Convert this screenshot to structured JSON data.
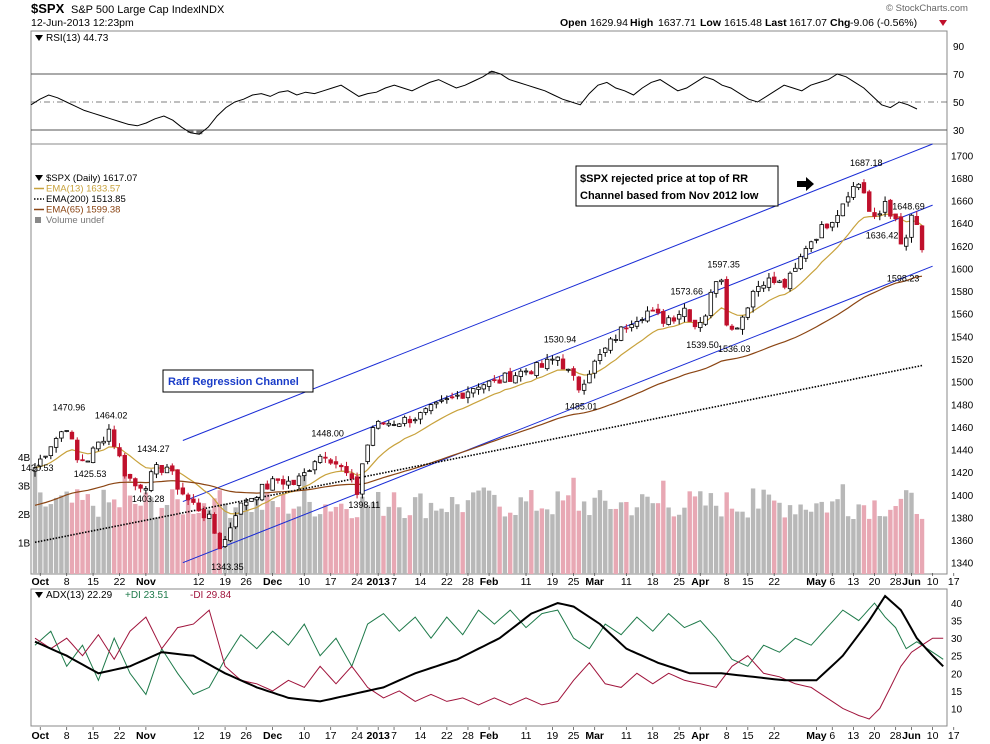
{
  "header": {
    "symbol": "$SPX",
    "name": "S&P 500 Large Cap Index",
    "exchange": "INDX",
    "date": "12-Jun-2013 12:23pm",
    "watermark": "© StockCharts.com",
    "open_label": "Open",
    "open": "1629.94",
    "high_label": "High",
    "high": "1637.71",
    "low_label": "Low",
    "low": "1615.48",
    "last_label": "Last",
    "last": "1617.07",
    "chg_label": "Chg",
    "chg": "-9.06 (-0.56%)"
  },
  "rsi": {
    "label": "RSI(13) 44.73",
    "ticks": [
      90,
      70,
      50,
      30
    ],
    "values": [
      48,
      52,
      55,
      53,
      50,
      47,
      44,
      42,
      40,
      38,
      36,
      34,
      33,
      35,
      38,
      40,
      37,
      32,
      28,
      27,
      32,
      40,
      46,
      50,
      52,
      55,
      56,
      54,
      57,
      58,
      55,
      57,
      56,
      58,
      60,
      62,
      58,
      54,
      56,
      57,
      60,
      62,
      60,
      58,
      61,
      64,
      66,
      63,
      60,
      62,
      65,
      68,
      72,
      70,
      66,
      64,
      62,
      60,
      58,
      55,
      52,
      50,
      48,
      56,
      62,
      64,
      60,
      58,
      55,
      60,
      64,
      66,
      62,
      58,
      60,
      64,
      68,
      66,
      62,
      60,
      56,
      52,
      50,
      54,
      58,
      62,
      60,
      58,
      62,
      64,
      66,
      70,
      68,
      64,
      60,
      54,
      48,
      46,
      50,
      48,
      45
    ]
  },
  "price": {
    "legend": [
      {
        "text": "$SPX (Daily) 1617.07",
        "color": "#000000"
      },
      {
        "text": "EMA(13) 1633.57",
        "color": "#c8a23c"
      },
      {
        "text": "EMA(200) 1513.85",
        "color": "#000000"
      },
      {
        "text": "EMA(65) 1599.38",
        "color": "#8b4513"
      },
      {
        "text": "Volume undef",
        "color": "#777777"
      }
    ],
    "ylim": [
      1330,
      1710
    ],
    "y_ticks": [
      1340,
      1360,
      1380,
      1400,
      1420,
      1440,
      1460,
      1480,
      1500,
      1520,
      1540,
      1560,
      1580,
      1600,
      1620,
      1640,
      1660,
      1680,
      1700
    ],
    "volume_ticks": [
      "4B",
      "3B",
      "2B",
      "1B"
    ],
    "annotation": "$SPX rejected price at top of RR Channel based from Nov 2012 low",
    "channel_label": "Raff Regression Channel",
    "price_labels": [
      {
        "i": 0,
        "price": 1430.53,
        "text": "1430.53"
      },
      {
        "i": 6,
        "price": 1470.96,
        "text": "1470.96"
      },
      {
        "i": 10,
        "price": 1425.53,
        "text": "1425.53"
      },
      {
        "i": 14,
        "price": 1464.02,
        "text": "1464.02"
      },
      {
        "i": 22,
        "price": 1434.27,
        "text": "1434.27"
      },
      {
        "i": 21,
        "price": 1403.28,
        "text": "1403.28"
      },
      {
        "i": 36,
        "price": 1343.35,
        "text": "1343.35"
      },
      {
        "i": 55,
        "price": 1448.0,
        "text": "1448.00"
      },
      {
        "i": 62,
        "price": 1398.11,
        "text": "1398.11"
      },
      {
        "i": 99,
        "price": 1530.94,
        "text": "1530.94"
      },
      {
        "i": 103,
        "price": 1485.01,
        "text": "1485.01"
      },
      {
        "i": 123,
        "price": 1573.66,
        "text": "1573.66"
      },
      {
        "i": 126,
        "price": 1539.5,
        "text": "1539.50"
      },
      {
        "i": 130,
        "price": 1597.35,
        "text": "1597.35"
      },
      {
        "i": 132,
        "price": 1536.03,
        "text": "1536.03"
      },
      {
        "i": 157,
        "price": 1687.18,
        "text": "1687.18"
      },
      {
        "i": 160,
        "price": 1636.42,
        "text": "1636.42"
      },
      {
        "i": 165,
        "price": 1648.69,
        "text": "1648.69"
      },
      {
        "i": 164,
        "price": 1598.23,
        "text": "1598.23"
      }
    ],
    "anchors": [
      [
        0,
        1424
      ],
      [
        3,
        1445
      ],
      [
        6,
        1461
      ],
      [
        8,
        1430
      ],
      [
        10,
        1432
      ],
      [
        14,
        1458
      ],
      [
        17,
        1420
      ],
      [
        19,
        1408
      ],
      [
        21,
        1410
      ],
      [
        23,
        1422
      ],
      [
        25,
        1425
      ],
      [
        27,
        1408
      ],
      [
        29,
        1395
      ],
      [
        31,
        1388
      ],
      [
        33,
        1378
      ],
      [
        35,
        1355
      ],
      [
        36,
        1360
      ],
      [
        38,
        1385
      ],
      [
        40,
        1395
      ],
      [
        43,
        1405
      ],
      [
        46,
        1413
      ],
      [
        49,
        1410
      ],
      [
        51,
        1418
      ],
      [
        53,
        1432
      ],
      [
        55,
        1437
      ],
      [
        57,
        1428
      ],
      [
        59,
        1418
      ],
      [
        61,
        1402
      ],
      [
        62,
        1428
      ],
      [
        64,
        1460
      ],
      [
        66,
        1463
      ],
      [
        70,
        1466
      ],
      [
        73,
        1470
      ],
      [
        77,
        1480
      ],
      [
        81,
        1490
      ],
      [
        84,
        1498
      ],
      [
        87,
        1499
      ],
      [
        90,
        1505
      ],
      [
        93,
        1510
      ],
      [
        96,
        1513
      ],
      [
        99,
        1522
      ],
      [
        101,
        1508
      ],
      [
        103,
        1495
      ],
      [
        105,
        1510
      ],
      [
        107,
        1522
      ],
      [
        110,
        1540
      ],
      [
        113,
        1555
      ],
      [
        116,
        1562
      ],
      [
        119,
        1555
      ],
      [
        121,
        1558
      ],
      [
        123,
        1565
      ],
      [
        125,
        1550
      ],
      [
        127,
        1560
      ],
      [
        129,
        1592
      ],
      [
        130,
        1593
      ],
      [
        131,
        1555
      ],
      [
        132,
        1545
      ],
      [
        134,
        1558
      ],
      [
        136,
        1580
      ],
      [
        138,
        1590
      ],
      [
        140,
        1588
      ],
      [
        142,
        1585
      ],
      [
        144,
        1598
      ],
      [
        146,
        1620
      ],
      [
        148,
        1630
      ],
      [
        150,
        1640
      ],
      [
        152,
        1650
      ],
      [
        154,
        1668
      ],
      [
        156,
        1675
      ],
      [
        157,
        1668
      ],
      [
        158,
        1650
      ],
      [
        159,
        1642
      ],
      [
        160,
        1648
      ],
      [
        161,
        1660
      ],
      [
        162,
        1650
      ],
      [
        163,
        1640
      ],
      [
        164,
        1620
      ],
      [
        165,
        1627
      ],
      [
        166,
        1643
      ],
      [
        167,
        1637
      ],
      [
        168,
        1617
      ]
    ],
    "channel": {
      "start": [
        28,
        1448
      ],
      "end": [
        170,
        1710
      ],
      "lower_offset": -108,
      "middle_offset": -54
    }
  },
  "x_axis": {
    "labels": [
      {
        "i": 1,
        "text": "Oct",
        "bold": true
      },
      {
        "i": 6,
        "text": "8",
        "bold": false
      },
      {
        "i": 11,
        "text": "15",
        "bold": false
      },
      {
        "i": 16,
        "text": "22",
        "bold": false
      },
      {
        "i": 21,
        "text": "Nov",
        "bold": true
      },
      {
        "i": 31,
        "text": "12",
        "bold": false
      },
      {
        "i": 36,
        "text": "19",
        "bold": false
      },
      {
        "i": 40,
        "text": "26",
        "bold": false
      },
      {
        "i": 45,
        "text": "Dec",
        "bold": true
      },
      {
        "i": 51,
        "text": "10",
        "bold": false
      },
      {
        "i": 56,
        "text": "17",
        "bold": false
      },
      {
        "i": 61,
        "text": "24",
        "bold": false
      },
      {
        "i": 65,
        "text": "2013",
        "bold": true
      },
      {
        "i": 68,
        "text": "7",
        "bold": false
      },
      {
        "i": 73,
        "text": "14",
        "bold": false
      },
      {
        "i": 78,
        "text": "22",
        "bold": false
      },
      {
        "i": 82,
        "text": "28",
        "bold": false
      },
      {
        "i": 86,
        "text": "Feb",
        "bold": true
      },
      {
        "i": 93,
        "text": "11",
        "bold": false
      },
      {
        "i": 98,
        "text": "19",
        "bold": false
      },
      {
        "i": 102,
        "text": "25",
        "bold": false
      },
      {
        "i": 106,
        "text": "Mar",
        "bold": true
      },
      {
        "i": 112,
        "text": "11",
        "bold": false
      },
      {
        "i": 117,
        "text": "18",
        "bold": false
      },
      {
        "i": 122,
        "text": "25",
        "bold": false
      },
      {
        "i": 126,
        "text": "Apr",
        "bold": true
      },
      {
        "i": 131,
        "text": "8",
        "bold": false
      },
      {
        "i": 135,
        "text": "15",
        "bold": false
      },
      {
        "i": 140,
        "text": "22",
        "bold": false
      },
      {
        "i": 148,
        "text": "May",
        "bold": true
      },
      {
        "i": 151,
        "text": "6",
        "bold": false
      },
      {
        "i": 155,
        "text": "13",
        "bold": false
      },
      {
        "i": 159,
        "text": "20",
        "bold": false
      },
      {
        "i": 163,
        "text": "28",
        "bold": false
      },
      {
        "i": 166,
        "text": "Jun",
        "bold": true
      },
      {
        "i": 170,
        "text": "10",
        "bold": false
      },
      {
        "i": 174,
        "text": "17",
        "bold": false
      }
    ]
  },
  "adx": {
    "label_adx": "ADX(13) 22.29",
    "label_pdi": "+DI 23.51",
    "label_ndi": "-DI 29.84",
    "ticks": [
      40,
      35,
      30,
      25,
      20,
      15,
      10
    ],
    "ylim": [
      5,
      44
    ],
    "adx_anchors": [
      [
        0,
        29
      ],
      [
        6,
        25
      ],
      [
        12,
        20
      ],
      [
        18,
        22
      ],
      [
        24,
        26
      ],
      [
        30,
        25
      ],
      [
        36,
        20
      ],
      [
        42,
        16
      ],
      [
        48,
        13
      ],
      [
        54,
        12
      ],
      [
        60,
        14
      ],
      [
        66,
        16
      ],
      [
        72,
        20
      ],
      [
        80,
        24
      ],
      [
        88,
        30
      ],
      [
        94,
        37
      ],
      [
        99,
        40
      ],
      [
        102,
        39
      ],
      [
        107,
        34
      ],
      [
        112,
        27
      ],
      [
        118,
        23
      ],
      [
        124,
        20
      ],
      [
        130,
        20
      ],
      [
        136,
        19
      ],
      [
        142,
        18
      ],
      [
        148,
        18
      ],
      [
        153,
        25
      ],
      [
        158,
        35
      ],
      [
        161,
        42
      ],
      [
        164,
        38
      ],
      [
        167,
        30
      ],
      [
        170,
        25
      ],
      [
        172,
        22
      ]
    ],
    "pdi_anchors": [
      [
        0,
        28
      ],
      [
        3,
        32
      ],
      [
        6,
        22
      ],
      [
        9,
        28
      ],
      [
        12,
        18
      ],
      [
        15,
        30
      ],
      [
        18,
        20
      ],
      [
        21,
        14
      ],
      [
        24,
        27
      ],
      [
        27,
        20
      ],
      [
        30,
        14
      ],
      [
        33,
        16
      ],
      [
        36,
        24
      ],
      [
        39,
        31
      ],
      [
        42,
        27
      ],
      [
        45,
        32
      ],
      [
        48,
        28
      ],
      [
        51,
        34
      ],
      [
        54,
        25
      ],
      [
        57,
        30
      ],
      [
        60,
        22
      ],
      [
        63,
        34
      ],
      [
        66,
        37
      ],
      [
        69,
        32
      ],
      [
        72,
        36
      ],
      [
        75,
        30
      ],
      [
        78,
        36
      ],
      [
        81,
        31
      ],
      [
        84,
        38
      ],
      [
        87,
        34
      ],
      [
        90,
        38
      ],
      [
        93,
        33
      ],
      [
        96,
        37
      ],
      [
        99,
        38
      ],
      [
        102,
        30
      ],
      [
        105,
        27
      ],
      [
        108,
        34
      ],
      [
        111,
        31
      ],
      [
        114,
        36
      ],
      [
        117,
        32
      ],
      [
        120,
        37
      ],
      [
        123,
        33
      ],
      [
        126,
        35
      ],
      [
        129,
        30
      ],
      [
        132,
        24
      ],
      [
        135,
        22
      ],
      [
        138,
        28
      ],
      [
        141,
        26
      ],
      [
        144,
        30
      ],
      [
        147,
        28
      ],
      [
        150,
        33
      ],
      [
        153,
        38
      ],
      [
        156,
        35
      ],
      [
        159,
        40
      ],
      [
        161,
        36
      ],
      [
        163,
        33
      ],
      [
        165,
        27
      ],
      [
        167,
        29
      ],
      [
        169,
        27
      ],
      [
        172,
        24
      ]
    ],
    "ndi_anchors": [
      [
        0,
        30
      ],
      [
        3,
        27
      ],
      [
        6,
        30
      ],
      [
        9,
        25
      ],
      [
        12,
        31
      ],
      [
        15,
        24
      ],
      [
        18,
        32
      ],
      [
        21,
        36
      ],
      [
        24,
        27
      ],
      [
        27,
        33
      ],
      [
        30,
        34
      ],
      [
        33,
        38
      ],
      [
        36,
        22
      ],
      [
        39,
        18
      ],
      [
        42,
        17
      ],
      [
        45,
        15
      ],
      [
        48,
        18
      ],
      [
        51,
        16
      ],
      [
        54,
        22
      ],
      [
        57,
        17
      ],
      [
        60,
        22
      ],
      [
        63,
        16
      ],
      [
        66,
        13
      ],
      [
        69,
        15
      ],
      [
        72,
        12
      ],
      [
        75,
        14
      ],
      [
        78,
        12
      ],
      [
        81,
        13
      ],
      [
        84,
        11
      ],
      [
        87,
        13
      ],
      [
        90,
        11
      ],
      [
        93,
        13
      ],
      [
        96,
        11
      ],
      [
        99,
        12
      ],
      [
        102,
        18
      ],
      [
        105,
        23
      ],
      [
        108,
        17
      ],
      [
        111,
        16
      ],
      [
        114,
        20
      ],
      [
        117,
        17
      ],
      [
        120,
        20
      ],
      [
        123,
        18
      ],
      [
        126,
        17
      ],
      [
        129,
        16
      ],
      [
        132,
        22
      ],
      [
        135,
        25
      ],
      [
        138,
        20
      ],
      [
        141,
        19
      ],
      [
        144,
        17
      ],
      [
        147,
        16
      ],
      [
        150,
        13
      ],
      [
        153,
        10
      ],
      [
        156,
        8
      ],
      [
        158,
        7
      ],
      [
        160,
        10
      ],
      [
        162,
        16
      ],
      [
        164,
        22
      ],
      [
        166,
        26
      ],
      [
        168,
        28
      ],
      [
        170,
        30
      ],
      [
        172,
        30
      ]
    ]
  }
}
